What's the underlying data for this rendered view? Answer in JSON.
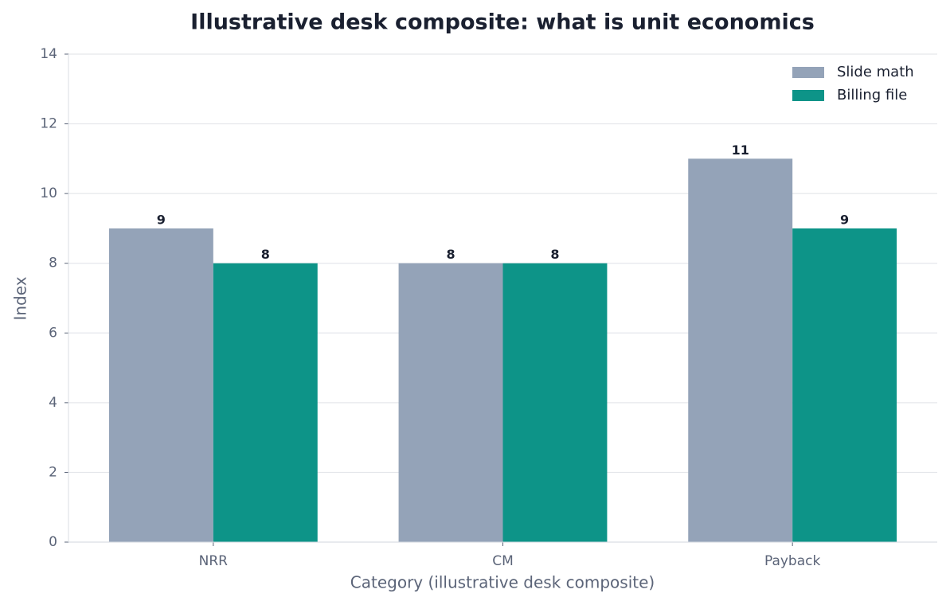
{
  "chart_data": {
    "type": "bar",
    "title": "Illustrative desk composite: what is unit economics",
    "xlabel": "Category (illustrative desk composite)",
    "ylabel": "Index",
    "categories": [
      "NRR",
      "CM",
      "Payback"
    ],
    "series": [
      {
        "name": "Slide math",
        "color": "#94a3b8",
        "values": [
          9,
          8,
          11
        ]
      },
      {
        "name": "Billing file",
        "color": "#0d9488",
        "values": [
          8,
          8,
          9
        ]
      }
    ],
    "ylim": [
      0,
      14
    ],
    "yticks": [
      0,
      2,
      4,
      6,
      8,
      10,
      12,
      14
    ],
    "grid": true,
    "legend": "upper right"
  }
}
